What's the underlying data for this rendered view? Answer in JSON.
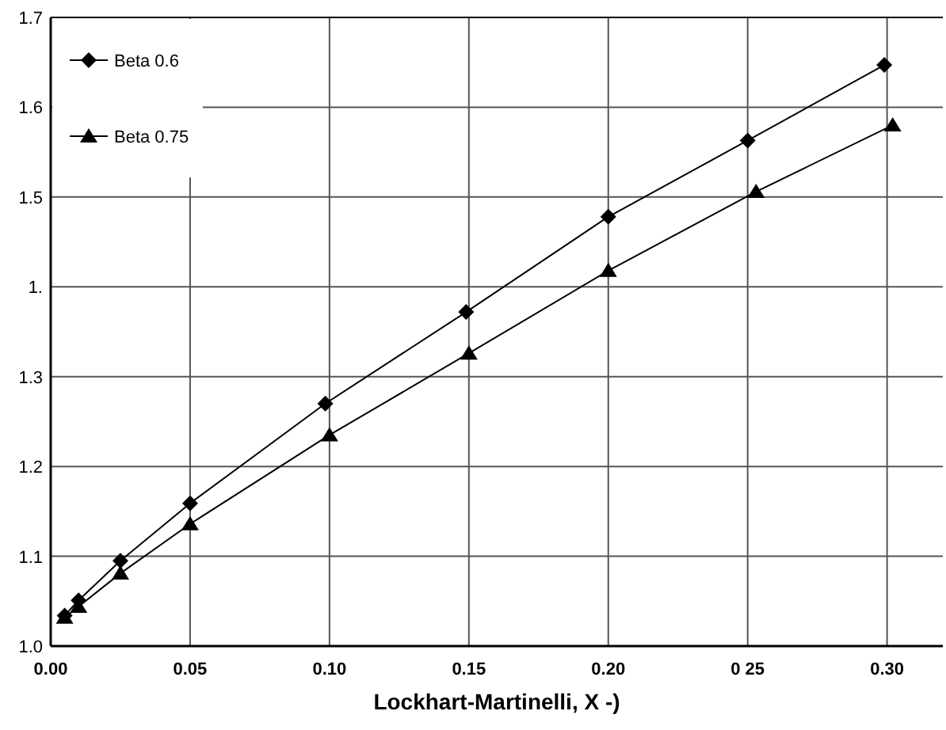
{
  "chart_data": {
    "type": "line",
    "xlabel": "Lockhart-Martinelli, X  -)",
    "xlim": [
      0,
      0.32
    ],
    "xticks": [
      {
        "value": 0,
        "label": "0.00"
      },
      {
        "value": 0.05,
        "label": "0.05"
      },
      {
        "value": 0.1,
        "label": "0.10"
      },
      {
        "value": 0.15,
        "label": "0.15"
      },
      {
        "value": 0.2,
        "label": "0.20"
      },
      {
        "value": 0.25,
        "label": "0 25"
      },
      {
        "value": 0.3,
        "label": "0.30"
      }
    ],
    "ylim": [
      1.0,
      1.7
    ],
    "yticks": [
      {
        "value": 1.0,
        "label": "1.0"
      },
      1.1,
      1.2,
      1.3,
      {
        "value": 1.4,
        "label": "1."
      },
      1.5,
      1.6,
      1.7
    ],
    "grid": true,
    "legend": "top left",
    "line_style": "solid",
    "series": [
      {
        "name": "Beta 0.6",
        "color": "#000000",
        "marker": "diamond",
        "x": [
          0.005,
          0.01,
          0.025,
          0.05,
          0.0985,
          0.149,
          0.2,
          0.25,
          0.299
        ],
        "values": [
          1.034,
          1.051,
          1.095,
          1.159,
          1.27,
          1.372,
          1.478,
          1.563,
          1.647
        ]
      },
      {
        "name": "Beta 0.75",
        "color": "#000000",
        "marker": "triangle",
        "x": [
          0.005,
          0.01,
          0.025,
          0.05,
          0.1,
          0.15,
          0.2,
          0.253,
          0.302
        ],
        "values": [
          1.032,
          1.044,
          1.081,
          1.136,
          1.235,
          1.326,
          1.418,
          1.506,
          1.58
        ]
      }
    ]
  }
}
